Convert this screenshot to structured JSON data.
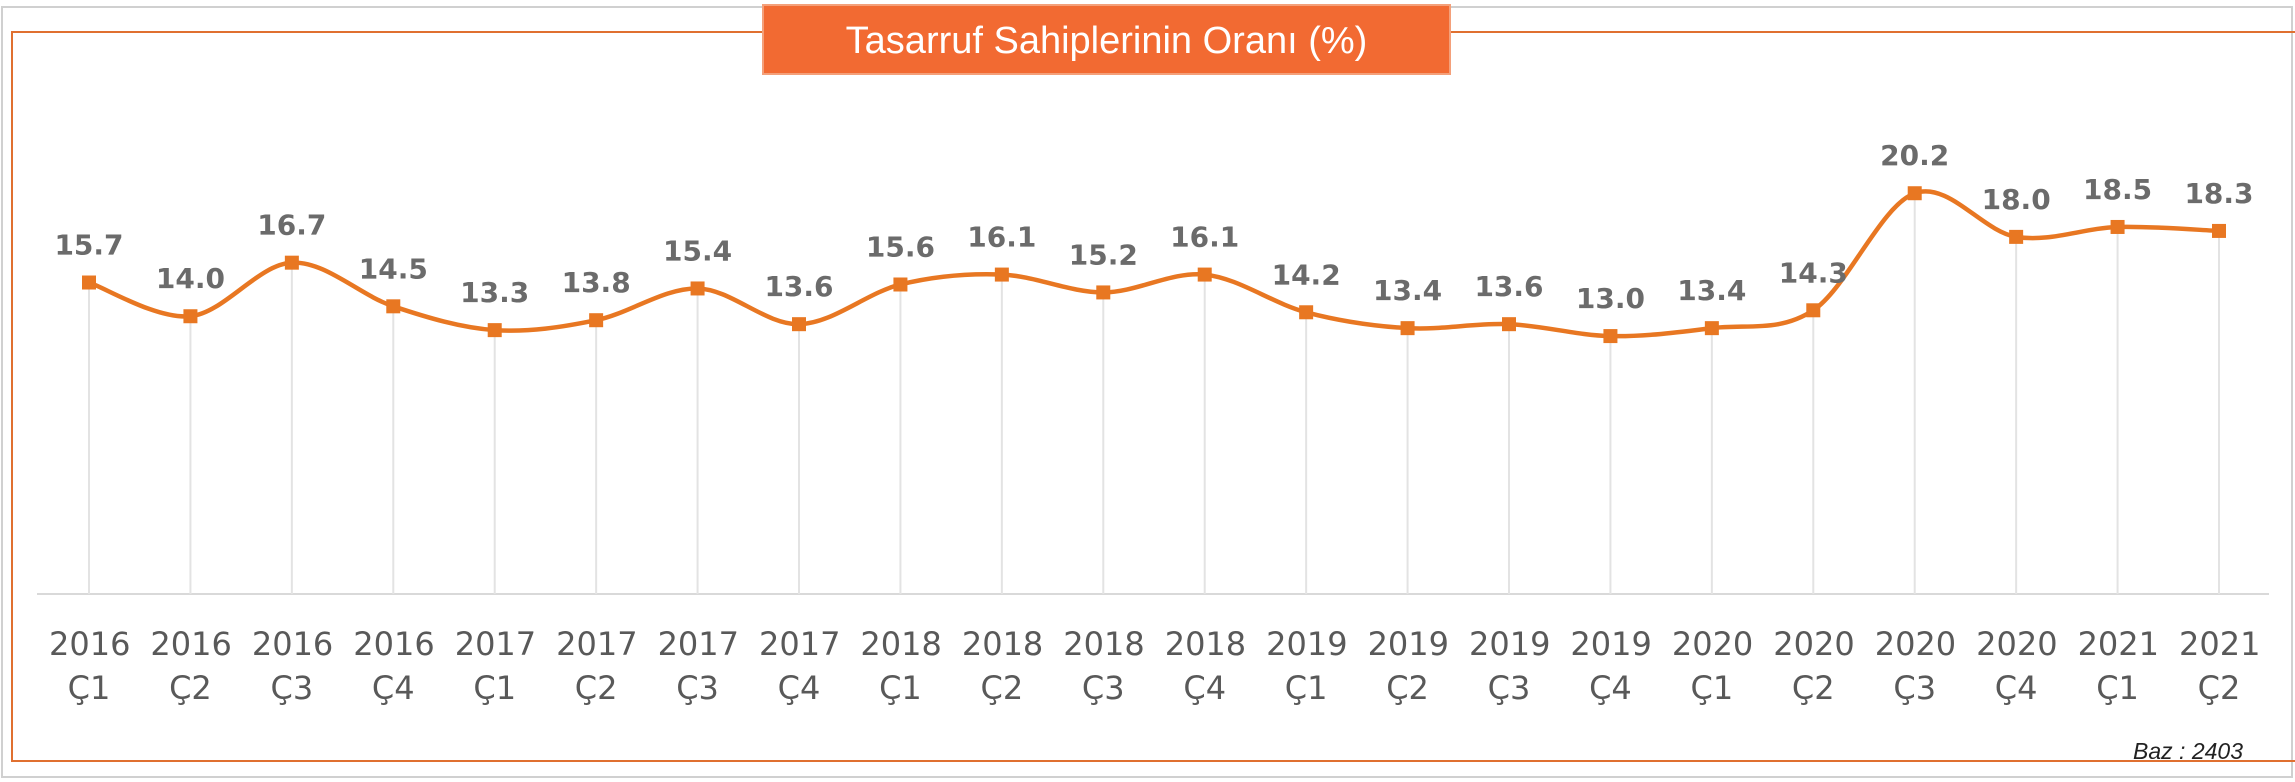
{
  "chart_data": {
    "type": "line",
    "title": "Tasarruf Sahiplerinin Oranı (%)",
    "categories": [
      "2016 Ç1",
      "2016 Ç2",
      "2016 Ç3",
      "2016 Ç4",
      "2017 Ç1",
      "2017 Ç2",
      "2017 Ç3",
      "2017 Ç4",
      "2018 Ç1",
      "2018 Ç2",
      "2018 Ç3",
      "2018 Ç4",
      "2019 Ç1",
      "2019 Ç2",
      "2019 Ç3",
      "2019 Ç4",
      "2020 Ç1",
      "2020 Ç2",
      "2020 Ç3",
      "2020 Ç4",
      "2021 Ç1",
      "2021 Ç2"
    ],
    "values": [
      15.7,
      14.0,
      16.7,
      14.5,
      13.3,
      13.8,
      15.4,
      13.6,
      15.6,
      16.1,
      15.2,
      16.1,
      14.2,
      13.4,
      13.6,
      13.0,
      13.4,
      14.3,
      20.2,
      18.0,
      18.5,
      18.3
    ],
    "value_labels": [
      "15.7",
      "14.0",
      "16.7",
      "14.5",
      "13.3",
      "13.8",
      "15.4",
      "13.6",
      "15.6",
      "16.1",
      "15.2",
      "16.1",
      "14.2",
      "13.4",
      "13.6",
      "13.0",
      "13.4",
      "14.3",
      "20.2",
      "18.0",
      "18.5",
      "18.3"
    ],
    "color": "#e87722",
    "ylim": [
      0,
      25
    ],
    "smooth": true,
    "note": "Baz : 2403"
  }
}
